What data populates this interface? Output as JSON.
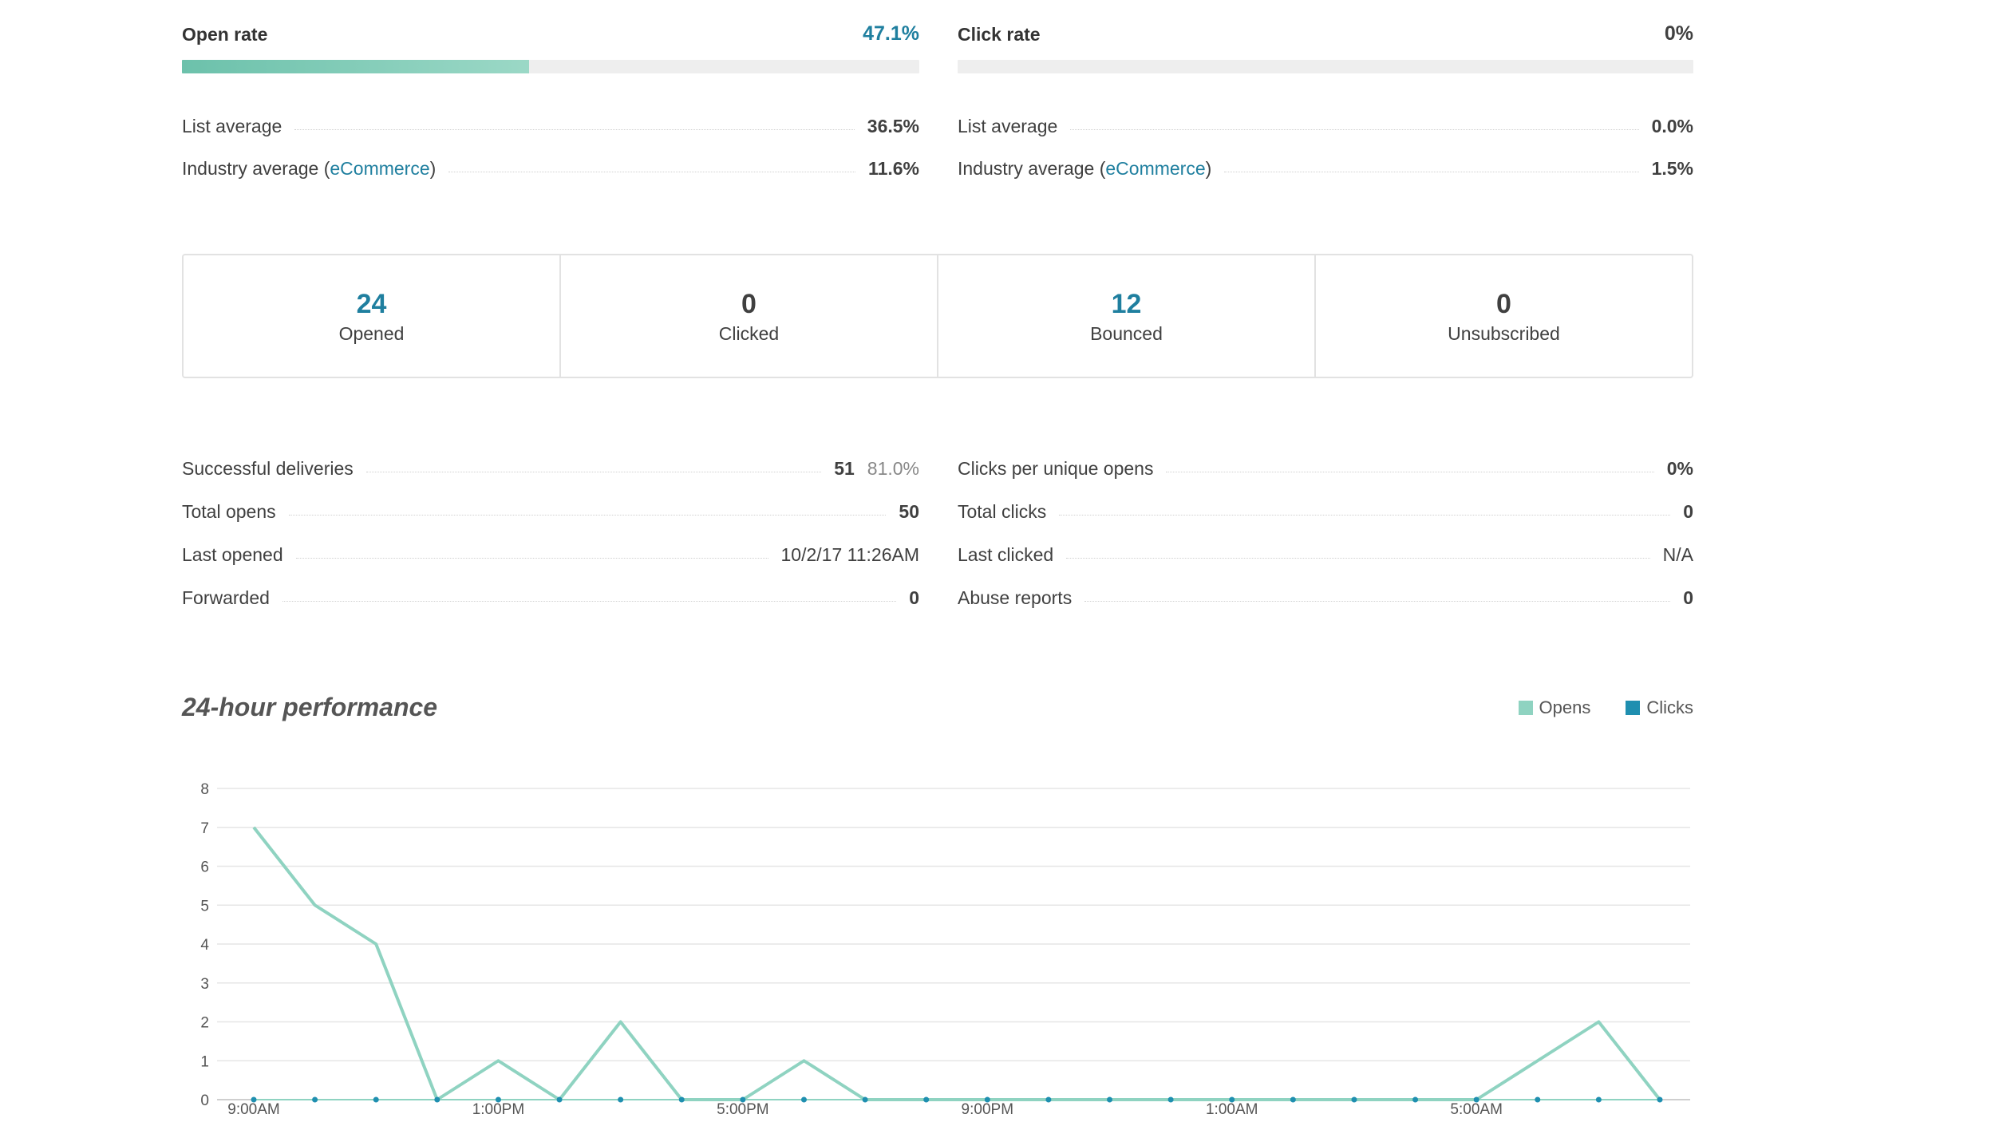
{
  "open_rate": {
    "title": "Open rate",
    "value": "47.1%",
    "fill_percent": 47.1,
    "list_avg_label": "List average",
    "list_avg": "36.5%",
    "industry_prefix": "Industry average (",
    "industry_link": "eCommerce",
    "industry_suffix": ")",
    "industry_avg": "11.6%"
  },
  "click_rate": {
    "title": "Click rate",
    "value": "0%",
    "fill_percent": 0,
    "list_avg_label": "List average",
    "list_avg": "0.0%",
    "industry_prefix": "Industry average (",
    "industry_link": "eCommerce",
    "industry_suffix": ")",
    "industry_avg": "1.5%"
  },
  "stats": [
    {
      "value": "24",
      "label": "Opened"
    },
    {
      "value": "0",
      "label": "Clicked"
    },
    {
      "value": "12",
      "label": "Bounced"
    },
    {
      "value": "0",
      "label": "Unsubscribed"
    }
  ],
  "details_left": [
    {
      "label": "Successful deliveries",
      "value": "51",
      "sub": "81.0%"
    },
    {
      "label": "Total opens",
      "value": "50"
    },
    {
      "label": "Last opened",
      "value": "10/2/17 11:26AM"
    },
    {
      "label": "Forwarded",
      "value": "0"
    }
  ],
  "details_right": [
    {
      "label": "Clicks per unique opens",
      "value": "0%"
    },
    {
      "label": "Total clicks",
      "value": "0"
    },
    {
      "label": "Last clicked",
      "value": "N/A"
    },
    {
      "label": "Abuse reports",
      "value": "0"
    }
  ],
  "performance": {
    "title": "24-hour performance",
    "legend_opens": "Opens",
    "legend_clicks": "Clicks"
  },
  "colors": {
    "opens": "#8fd3c1",
    "clicks": "#1f8fb0",
    "teal_text": "#1f7f9f"
  },
  "chart_data": {
    "type": "line",
    "title": "24-hour performance",
    "x": [
      "9:00AM",
      "10:00AM",
      "11:00AM",
      "12:00PM",
      "1:00PM",
      "2:00PM",
      "3:00PM",
      "4:00PM",
      "5:00PM",
      "6:00PM",
      "7:00PM",
      "8:00PM",
      "9:00PM",
      "10:00PM",
      "11:00PM",
      "12:00AM",
      "1:00AM",
      "2:00AM",
      "3:00AM",
      "4:00AM",
      "5:00AM",
      "6:00AM",
      "7:00AM",
      "8:00AM"
    ],
    "tick_labels": [
      "9:00AM",
      "1:00PM",
      "5:00PM",
      "9:00PM",
      "1:00AM",
      "5:00AM"
    ],
    "y_ticks": [
      "0",
      "1",
      "2",
      "3",
      "4",
      "5",
      "6",
      "7",
      "8"
    ],
    "ylim": [
      0,
      8
    ],
    "series": [
      {
        "name": "Opens",
        "values": [
          7,
          5,
          4,
          0,
          1,
          0,
          2,
          0,
          0,
          1,
          0,
          0,
          0,
          0,
          0,
          0,
          0,
          0,
          0,
          0,
          0,
          1,
          2,
          0
        ]
      },
      {
        "name": "Clicks",
        "values": [
          0,
          0,
          0,
          0,
          0,
          0,
          0,
          0,
          0,
          0,
          0,
          0,
          0,
          0,
          0,
          0,
          0,
          0,
          0,
          0,
          0,
          0,
          0,
          0
        ]
      }
    ]
  }
}
